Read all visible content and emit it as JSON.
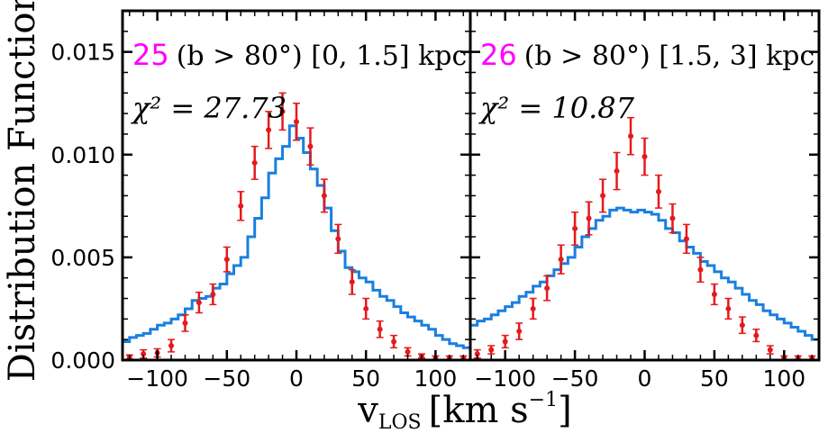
{
  "figure": {
    "ylabel": "Distribution Function",
    "xlabel_main": "v",
    "xlabel_sub": "LOS",
    "xlabel_units": "[km s",
    "xlabel_exp": "−1",
    "xlabel_close": "]"
  },
  "colors": {
    "model": "#1a7fe0",
    "data": "#e41a1c",
    "panel_number": "#ff00ff",
    "axes": "#000000"
  },
  "chart_data": [
    {
      "type": "line",
      "panel_number": "25",
      "region": "(b > 80°) [0, 1.5] kpc",
      "chi2_label": "χ² = 27.73",
      "xlim": [
        -125,
        125
      ],
      "ylim": [
        0,
        0.017
      ],
      "yticks": [
        "0.000",
        "0.005",
        "0.010",
        "0.015"
      ],
      "xticks": [
        "−100",
        "−50",
        "0",
        "50",
        "100"
      ],
      "series": [
        {
          "name": "model",
          "style": "step",
          "bin_edges": [
            -125,
            -120,
            -115,
            -110,
            -105,
            -100,
            -95,
            -90,
            -85,
            -80,
            -75,
            -70,
            -65,
            -60,
            -55,
            -50,
            -45,
            -40,
            -35,
            -30,
            -25,
            -20,
            -15,
            -10,
            -5,
            0,
            5,
            10,
            15,
            20,
            25,
            30,
            35,
            40,
            45,
            50,
            55,
            60,
            65,
            70,
            75,
            80,
            85,
            90,
            95,
            100,
            105,
            110,
            115,
            120,
            125
          ],
          "values": [
            0.0009,
            0.0011,
            0.0012,
            0.0013,
            0.0015,
            0.0017,
            0.0018,
            0.002,
            0.0022,
            0.0025,
            0.0029,
            0.003,
            0.0031,
            0.0035,
            0.0037,
            0.0042,
            0.0046,
            0.005,
            0.006,
            0.0069,
            0.0079,
            0.0091,
            0.0098,
            0.0104,
            0.0114,
            0.0108,
            0.0101,
            0.0093,
            0.0085,
            0.0074,
            0.0063,
            0.0053,
            0.0045,
            0.0043,
            0.004,
            0.0038,
            0.0034,
            0.0031,
            0.0029,
            0.0026,
            0.0023,
            0.0021,
            0.0019,
            0.0017,
            0.0015,
            0.0012,
            0.001,
            0.0008,
            0.0007,
            0.0006
          ]
        },
        {
          "name": "data",
          "style": "errorbar",
          "x": [
            -120,
            -110,
            -100,
            -90,
            -80,
            -70,
            -60,
            -50,
            -40,
            -30,
            -20,
            -10,
            0,
            10,
            20,
            30,
            40,
            50,
            60,
            70,
            80,
            90,
            100,
            110,
            120
          ],
          "y": [
            0.00015,
            0.0003,
            0.00035,
            0.0007,
            0.0018,
            0.0028,
            0.0032,
            0.0049,
            0.0075,
            0.0096,
            0.0112,
            0.0121,
            0.0116,
            0.0104,
            0.008,
            0.0059,
            0.0038,
            0.0025,
            0.0015,
            0.0009,
            0.0004,
            0.0002,
            0.0001,
            0.0001,
            0.0001
          ],
          "yerr": [
            0.0001,
            0.0002,
            0.0002,
            0.0003,
            0.0004,
            0.0005,
            0.0005,
            0.0006,
            0.0007,
            0.0008,
            0.0009,
            0.0009,
            0.0009,
            0.0009,
            0.0008,
            0.0007,
            0.0006,
            0.0005,
            0.0004,
            0.0003,
            0.0002,
            0.0001,
            0.0001,
            0.0001,
            0.0001
          ]
        }
      ]
    },
    {
      "type": "line",
      "panel_number": "26",
      "region": "(b > 80°) [1.5, 3] kpc",
      "chi2_label": "χ² = 10.87",
      "xlim": [
        -125,
        125
      ],
      "ylim": [
        0,
        0.017
      ],
      "yticks": [
        "0.000",
        "0.005",
        "0.010",
        "0.015"
      ],
      "xticks": [
        "−100",
        "−50",
        "0",
        "50",
        "100"
      ],
      "series": [
        {
          "name": "model",
          "style": "step",
          "bin_edges": [
            -125,
            -120,
            -115,
            -110,
            -105,
            -100,
            -95,
            -90,
            -85,
            -80,
            -75,
            -70,
            -65,
            -60,
            -55,
            -50,
            -45,
            -40,
            -35,
            -30,
            -25,
            -20,
            -15,
            -10,
            -5,
            0,
            5,
            10,
            15,
            20,
            25,
            30,
            35,
            40,
            45,
            50,
            55,
            60,
            65,
            70,
            75,
            80,
            85,
            90,
            95,
            100,
            105,
            110,
            115,
            120,
            125
          ],
          "values": [
            0.0017,
            0.0019,
            0.002,
            0.0022,
            0.0024,
            0.0026,
            0.0028,
            0.0031,
            0.0033,
            0.0036,
            0.0038,
            0.0041,
            0.0044,
            0.0047,
            0.005,
            0.0055,
            0.006,
            0.0064,
            0.0068,
            0.007,
            0.0073,
            0.0074,
            0.0073,
            0.0072,
            0.0073,
            0.0072,
            0.0071,
            0.0068,
            0.0064,
            0.0062,
            0.0058,
            0.0055,
            0.0052,
            0.0048,
            0.0046,
            0.0043,
            0.004,
            0.0038,
            0.0035,
            0.0032,
            0.0029,
            0.0027,
            0.0024,
            0.0022,
            0.002,
            0.0018,
            0.0016,
            0.0014,
            0.0012,
            0.001
          ]
        },
        {
          "name": "data",
          "style": "errorbar",
          "x": [
            -120,
            -110,
            -100,
            -90,
            -80,
            -70,
            -60,
            -50,
            -40,
            -30,
            -20,
            -10,
            0,
            10,
            20,
            30,
            40,
            50,
            60,
            70,
            80,
            90,
            100,
            110,
            120
          ],
          "y": [
            0.0003,
            0.0005,
            0.0009,
            0.0014,
            0.0025,
            0.0035,
            0.0049,
            0.0064,
            0.0069,
            0.008,
            0.0092,
            0.0109,
            0.0099,
            0.0082,
            0.0069,
            0.0059,
            0.0044,
            0.0032,
            0.0025,
            0.0017,
            0.0012,
            0.0005,
            0.0001,
            0.0001,
            0.0001
          ],
          "yerr": [
            0.0002,
            0.0002,
            0.0003,
            0.0004,
            0.0005,
            0.0006,
            0.0007,
            0.0008,
            0.0008,
            0.0008,
            0.0009,
            0.0009,
            0.0009,
            0.0008,
            0.0007,
            0.0007,
            0.0006,
            0.0005,
            0.0005,
            0.0004,
            0.0003,
            0.0002,
            0.0001,
            0.0001,
            0.0001
          ]
        }
      ]
    }
  ]
}
